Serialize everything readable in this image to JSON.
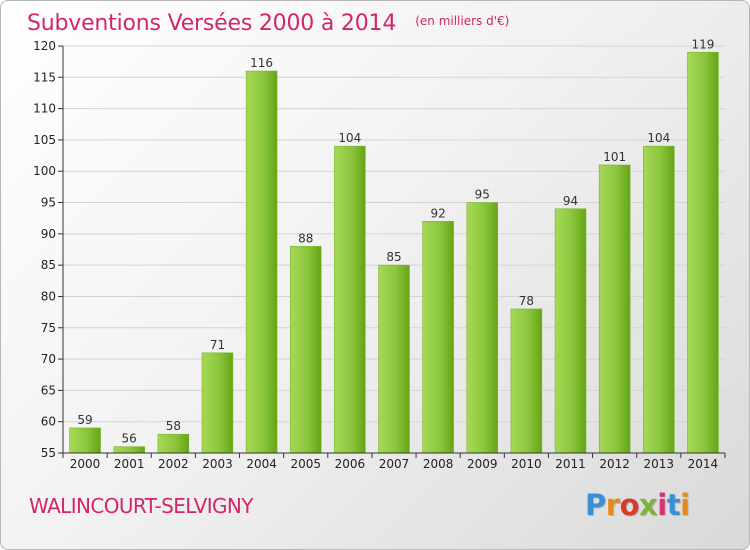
{
  "header": {
    "title": "Subventions Versées 2000 à 2014",
    "subtitle": "(en milliers d'€)"
  },
  "footer": {
    "place": "WALINCOURT-SELVIGNY",
    "brand": "Proxiti"
  },
  "colors": {
    "title": "#d2266b",
    "bar_light": "#9fd24a",
    "bar_dark": "#63a515",
    "grid": "#d4d4d4",
    "axis": "#333333"
  },
  "chart_data": {
    "type": "bar",
    "title": "Subventions Versées 2000 à 2014",
    "subtitle": "(en milliers d'€)",
    "xlabel": "",
    "ylabel": "",
    "categories": [
      "2000",
      "2001",
      "2002",
      "2003",
      "2004",
      "2005",
      "2006",
      "2007",
      "2008",
      "2009",
      "2010",
      "2011",
      "2012",
      "2013",
      "2014"
    ],
    "values": [
      59,
      56,
      58,
      71,
      116,
      88,
      104,
      85,
      92,
      95,
      78,
      94,
      101,
      104,
      119
    ],
    "ylim": [
      55,
      120
    ],
    "yticks": [
      55,
      60,
      65,
      70,
      75,
      80,
      85,
      90,
      95,
      100,
      105,
      110,
      115,
      120
    ],
    "grid": true,
    "legend": "none",
    "data_labels": true
  }
}
